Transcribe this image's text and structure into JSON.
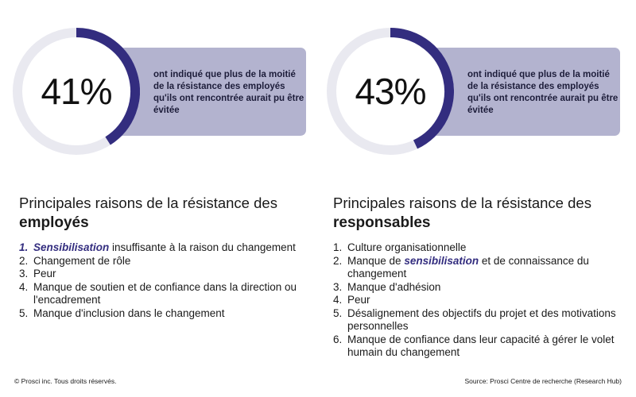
{
  "colors": {
    "accent": "#332d7f",
    "track": "#e9e9f0",
    "box": "#b3b3cf"
  },
  "chart_data": [
    {
      "type": "pie",
      "value": 41,
      "value_label": "41%",
      "description": "ont indiqué que plus de la moitié de la résistance des employés qu'ils ont rencontrée aurait pu être évitée",
      "heading_prefix": "Principales raisons de la résistance des",
      "heading_bold": "employés",
      "reasons": [
        {
          "num": "1.",
          "highlight": "Sensibilisation",
          "text": " insuffisante à la raison du changement"
        },
        {
          "num": "2.",
          "text": "Changement de rôle"
        },
        {
          "num": "3.",
          "text": "Peur"
        },
        {
          "num": "4.",
          "text": "Manque de soutien et de confiance dans la direction ou l'encadrement"
        },
        {
          "num": "5.",
          "text": "Manque d'inclusion dans le changement"
        }
      ]
    },
    {
      "type": "pie",
      "value": 43,
      "value_label": "43%",
      "description": "ont indiqué que plus de la moitié de la résistance des employés qu'ils ont rencontrée aurait pu être évitée",
      "heading_prefix": "Principales raisons de la résistance des",
      "heading_bold": "responsables",
      "reasons": [
        {
          "num": "1.",
          "text": "Culture organisationnelle"
        },
        {
          "num": "2.",
          "before": "Manque de ",
          "highlight": "sensibilisation",
          "text": " et de connaissance du changement"
        },
        {
          "num": "3.",
          "text": "Manque d'adhésion"
        },
        {
          "num": "4.",
          "text": "Peur"
        },
        {
          "num": "5.",
          "text": "Désalignement des objectifs du projet et des motivations personnelles"
        },
        {
          "num": "6.",
          "text": "Manque de confiance dans leur capacité à gérer le volet humain du changement"
        }
      ]
    }
  ],
  "footer": {
    "copyright": "© Prosci inc. Tous droits réservés.",
    "source": "Source: Prosci Centre de recherche (Research Hub)"
  }
}
